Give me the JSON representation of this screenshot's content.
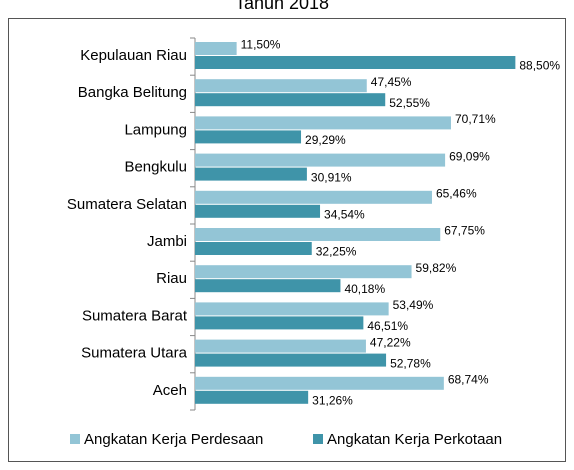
{
  "chart_data": {
    "type": "hbar",
    "title": "Tahun 2018",
    "categories": [
      "Kepulauan Riau",
      "Bangka Belitung",
      "Lampung",
      "Bengkulu",
      "Sumatera Selatan",
      "Jambi",
      "Riau",
      "Sumatera Barat",
      "Sumatera Utara",
      "Aceh"
    ],
    "series": [
      {
        "name": "Angkatan Kerja Perdesaan",
        "color": "#93c5d6",
        "values": [
          11.5,
          47.45,
          70.71,
          69.09,
          65.46,
          67.75,
          59.82,
          53.49,
          47.22,
          68.74
        ],
        "value_labels": [
          "11,50%",
          "47,45%",
          "70,71%",
          "69,09%",
          "65,46%",
          "67,75%",
          "59,82%",
          "53,49%",
          "47,22%",
          "68,74%"
        ]
      },
      {
        "name": "Angkatan Kerja Perkotaan",
        "color": "#3f94a9",
        "values": [
          88.5,
          52.55,
          29.29,
          30.91,
          34.54,
          32.25,
          40.18,
          46.51,
          52.78,
          31.26
        ],
        "value_labels": [
          "88,50%",
          "52,55%",
          "29,29%",
          "30,91%",
          "34,54%",
          "32,25%",
          "40,18%",
          "46,51%",
          "52,78%",
          "31,26%"
        ]
      }
    ],
    "xlim": [
      0,
      100
    ],
    "legend": "bottom"
  }
}
